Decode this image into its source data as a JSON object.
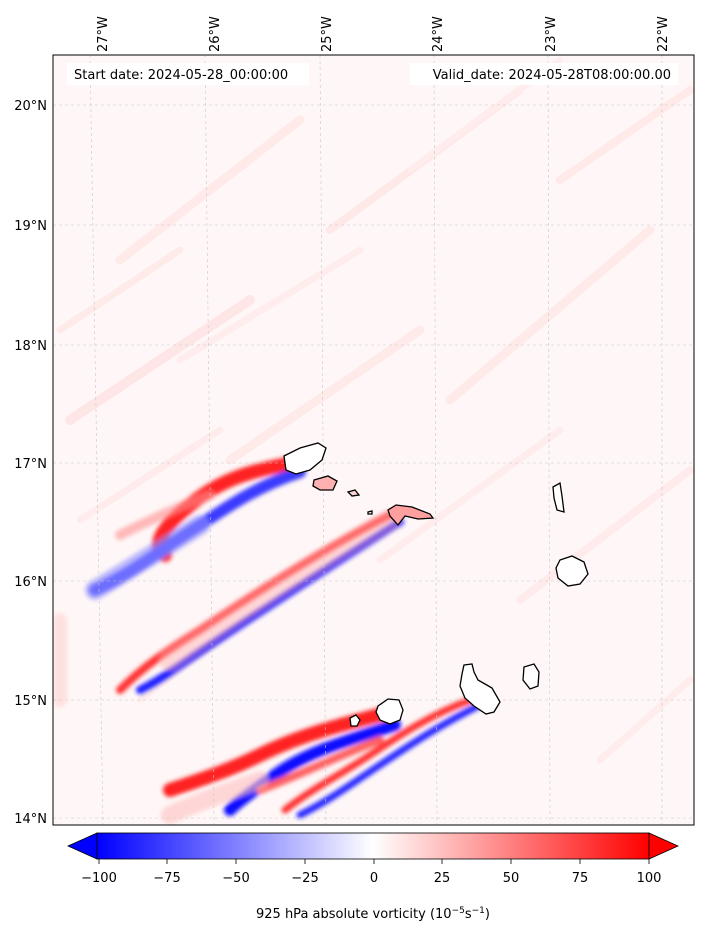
{
  "header": {
    "start_date": "Start date: 2024-05-28_00:00:00",
    "valid_date": "Valid_date: 2024-05-28T08:00:00.00"
  },
  "axes": {
    "lon_labels": [
      "27°W",
      "26°W",
      "25°W",
      "24°W",
      "23°W",
      "22°W"
    ],
    "lat_labels": [
      "20°N",
      "19°N",
      "18°N",
      "17°N",
      "16°N",
      "15°N",
      "14°N"
    ]
  },
  "colorbar": {
    "label_main": "925 hPa absolute vorticity (10",
    "label_exp1": "−5",
    "label_mid": "s",
    "label_exp2": "−1",
    "label_end": ")",
    "ticks": [
      "−100",
      "−75",
      "−50",
      "−25",
      "0",
      "25",
      "50",
      "75",
      "100"
    ],
    "min": -100,
    "max": 100,
    "cmap": "bwr",
    "color_low": "#0000ff",
    "color_mid": "#ffffff",
    "color_high": "#ff0000"
  },
  "map": {
    "field": "925 hPa absolute vorticity",
    "lon_range": [
      -27.3,
      -21.9
    ],
    "lat_range": [
      13.95,
      20.42
    ],
    "gridlines": true,
    "coastline_color": "#000000"
  }
}
